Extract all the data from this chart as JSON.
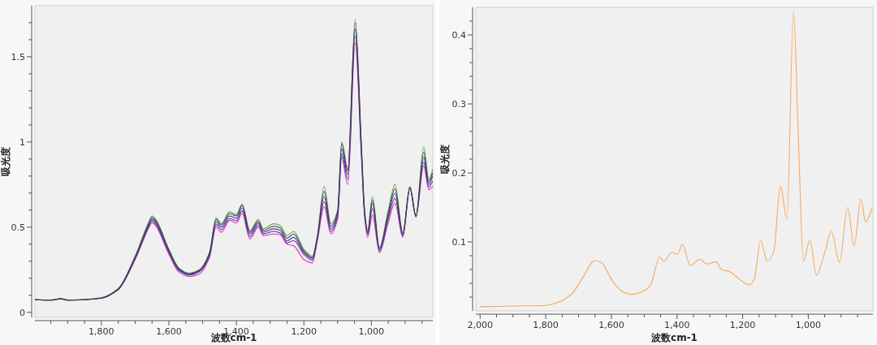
{
  "chart_data": [
    {
      "type": "line",
      "xlabel": "波数cm-1",
      "ylabel": "吸光度",
      "x": [
        1997,
        1950,
        1920,
        1900,
        1850,
        1800,
        1750,
        1700,
        1660,
        1650,
        1640,
        1600,
        1570,
        1540,
        1510,
        1480,
        1460,
        1445,
        1420,
        1400,
        1383,
        1360,
        1335,
        1320,
        1290,
        1270,
        1250,
        1230,
        1200,
        1175,
        1160,
        1140,
        1120,
        1100,
        1088,
        1070,
        1048,
        1030,
        1020,
        1011,
        997,
        976,
        951,
        930,
        907,
        886,
        868,
        845,
        830,
        818
      ],
      "series": [
        {
          "color": "#6aa84f",
          "values": [
            0.075,
            0.072,
            0.08,
            0.072,
            0.075,
            0.085,
            0.14,
            0.33,
            0.53,
            0.565,
            0.55,
            0.37,
            0.26,
            0.23,
            0.25,
            0.35,
            0.555,
            0.52,
            0.59,
            0.575,
            0.635,
            0.48,
            0.545,
            0.49,
            0.52,
            0.51,
            0.45,
            0.475,
            0.37,
            0.33,
            0.45,
            0.74,
            0.52,
            0.6,
            1.0,
            0.84,
            1.72,
            1.0,
            0.6,
            0.48,
            0.68,
            0.38,
            0.59,
            0.75,
            0.47,
            0.74,
            0.57,
            0.97,
            0.78,
            0.84
          ]
        },
        {
          "color": "#e030c8",
          "values": [
            null,
            null,
            null,
            null,
            null,
            0.082,
            0.132,
            0.31,
            0.495,
            0.525,
            0.51,
            0.34,
            0.235,
            0.21,
            0.225,
            0.32,
            0.5,
            0.47,
            0.54,
            0.525,
            0.58,
            0.43,
            0.5,
            0.45,
            0.46,
            0.455,
            0.4,
            0.39,
            0.31,
            0.29,
            0.42,
            0.62,
            0.46,
            0.55,
            0.91,
            0.75,
            1.58,
            0.93,
            0.56,
            0.44,
            0.57,
            0.35,
            0.52,
            0.64,
            0.44,
            0.73,
            0.56,
            0.86,
            0.72,
            0.74
          ]
        },
        {
          "color": "#703090",
          "values": [
            0.074,
            0.071,
            0.079,
            0.071,
            0.074,
            0.082,
            0.134,
            0.315,
            0.5,
            0.535,
            0.52,
            0.35,
            0.245,
            0.218,
            0.238,
            0.33,
            0.515,
            0.485,
            0.55,
            0.538,
            0.595,
            0.445,
            0.51,
            0.46,
            0.475,
            0.465,
            0.408,
            0.42,
            0.34,
            0.305,
            0.43,
            0.65,
            0.475,
            0.56,
            0.93,
            0.78,
            1.62,
            0.95,
            0.57,
            0.455,
            0.61,
            0.36,
            0.54,
            0.67,
            0.448,
            0.73,
            0.56,
            0.88,
            0.735,
            0.77
          ]
        },
        {
          "color": "#3040c0",
          "values": [
            0.074,
            0.071,
            0.079,
            0.071,
            0.074,
            0.083,
            0.136,
            0.32,
            0.51,
            0.545,
            0.53,
            0.358,
            0.25,
            0.222,
            0.242,
            0.338,
            0.53,
            0.5,
            0.565,
            0.552,
            0.612,
            0.46,
            0.522,
            0.47,
            0.49,
            0.48,
            0.42,
            0.44,
            0.35,
            0.315,
            0.438,
            0.68,
            0.49,
            0.575,
            0.96,
            0.81,
            1.66,
            0.97,
            0.58,
            0.465,
            0.64,
            0.368,
            0.56,
            0.7,
            0.455,
            0.73,
            0.565,
            0.91,
            0.75,
            0.8
          ]
        },
        {
          "color": "#404040",
          "values": [
            0.075,
            0.072,
            0.08,
            0.072,
            0.075,
            0.084,
            0.138,
            0.325,
            0.52,
            0.555,
            0.54,
            0.365,
            0.255,
            0.226,
            0.246,
            0.345,
            0.545,
            0.512,
            0.58,
            0.566,
            0.628,
            0.47,
            0.535,
            0.48,
            0.505,
            0.495,
            0.435,
            0.46,
            0.36,
            0.322,
            0.445,
            0.71,
            0.505,
            0.59,
            0.99,
            0.83,
            1.7,
            0.99,
            0.59,
            0.47,
            0.66,
            0.375,
            0.575,
            0.725,
            0.46,
            0.735,
            0.565,
            0.94,
            0.765,
            0.82
          ]
        }
      ],
      "xlim": [
        1997,
        818
      ],
      "ylim": [
        -0.03,
        1.8
      ],
      "xticks": [
        {
          "value": 1950,
          "label": null
        },
        {
          "value": 1900,
          "label": null
        },
        {
          "value": 1850,
          "label": null
        },
        {
          "value": 1800,
          "label": "1,800"
        },
        {
          "value": 1750,
          "label": null
        },
        {
          "value": 1700,
          "label": null
        },
        {
          "value": 1650,
          "label": null
        },
        {
          "value": 1600,
          "label": "1,600"
        },
        {
          "value": 1550,
          "label": null
        },
        {
          "value": 1500,
          "label": null
        },
        {
          "value": 1450,
          "label": null
        },
        {
          "value": 1400,
          "label": "1,400"
        },
        {
          "value": 1350,
          "label": null
        },
        {
          "value": 1300,
          "label": null
        },
        {
          "value": 1250,
          "label": null
        },
        {
          "value": 1200,
          "label": "1,200"
        },
        {
          "value": 1150,
          "label": null
        },
        {
          "value": 1100,
          "label": null
        },
        {
          "value": 1050,
          "label": null
        },
        {
          "value": 1000,
          "label": "1,000"
        },
        {
          "value": 950,
          "label": null
        },
        {
          "value": 900,
          "label": null
        },
        {
          "value": 850,
          "label": null
        }
      ],
      "yticks": [
        0,
        {
          "value": 0.1,
          "label": null
        },
        {
          "value": 0.2,
          "label": null
        },
        {
          "value": 0.3,
          "label": null
        },
        {
          "value": 0.4,
          "label": null
        },
        0.5,
        {
          "value": 0.6,
          "label": null
        },
        {
          "value": 0.7,
          "label": null
        },
        {
          "value": 0.8,
          "label": null
        },
        {
          "value": 0.9,
          "label": null
        },
        1,
        {
          "value": 1.1,
          "label": null
        },
        {
          "value": 1.2,
          "label": null
        },
        {
          "value": 1.3,
          "label": null
        },
        {
          "value": 1.4,
          "label": null
        },
        1.5,
        {
          "value": 1.6,
          "label": null
        },
        {
          "value": 1.7,
          "label": null
        }
      ]
    },
    {
      "type": "line",
      "xlabel": "波数cm-1",
      "ylabel": "吸光度",
      "x": [
        2000,
        1900,
        1800,
        1760,
        1720,
        1690,
        1650,
        1630,
        1600,
        1570,
        1540,
        1510,
        1480,
        1453,
        1440,
        1415,
        1400,
        1383,
        1360,
        1330,
        1310,
        1280,
        1265,
        1240,
        1210,
        1180,
        1165,
        1145,
        1125,
        1105,
        1085,
        1065,
        1045,
        1030,
        1015,
        995,
        975,
        950,
        930,
        905,
        880,
        860,
        840,
        825,
        805
      ],
      "series": [
        {
          "color": "#f5a860",
          "values": [
            0.006,
            0.007,
            0.008,
            0.013,
            0.025,
            0.046,
            0.073,
            0.07,
            0.046,
            0.029,
            0.024,
            0.027,
            0.038,
            0.078,
            0.072,
            0.085,
            0.082,
            0.096,
            0.066,
            0.075,
            0.068,
            0.071,
            0.06,
            0.057,
            0.046,
            0.038,
            0.046,
            0.102,
            0.072,
            0.086,
            0.181,
            0.133,
            0.435,
            0.248,
            0.072,
            0.102,
            0.052,
            0.084,
            0.115,
            0.07,
            0.15,
            0.094,
            0.162,
            0.129,
            0.149
          ]
        }
      ],
      "xlim": [
        2013,
        803
      ],
      "ylim": [
        0,
        0.44
      ],
      "xticks": [
        {
          "value": 2000,
          "label": "2,000"
        },
        {
          "value": 1950,
          "label": null
        },
        {
          "value": 1900,
          "label": null
        },
        {
          "value": 1850,
          "label": null
        },
        {
          "value": 1800,
          "label": "1,800"
        },
        {
          "value": 1750,
          "label": null
        },
        {
          "value": 1700,
          "label": null
        },
        {
          "value": 1650,
          "label": null
        },
        {
          "value": 1600,
          "label": "1,600"
        },
        {
          "value": 1550,
          "label": null
        },
        {
          "value": 1500,
          "label": null
        },
        {
          "value": 1450,
          "label": null
        },
        {
          "value": 1400,
          "label": "1,400"
        },
        {
          "value": 1350,
          "label": null
        },
        {
          "value": 1300,
          "label": null
        },
        {
          "value": 1250,
          "label": null
        },
        {
          "value": 1200,
          "label": "1,200"
        },
        {
          "value": 1150,
          "label": null
        },
        {
          "value": 1100,
          "label": null
        },
        {
          "value": 1050,
          "label": null
        },
        {
          "value": 1000,
          "label": "1,000"
        },
        {
          "value": 950,
          "label": null
        },
        {
          "value": 900,
          "label": null
        },
        {
          "value": 850,
          "label": null
        }
      ],
      "yticks": [
        {
          "value": 0.02,
          "label": null
        },
        {
          "value": 0.04,
          "label": null
        },
        {
          "value": 0.06,
          "label": null
        },
        {
          "value": 0.08,
          "label": null
        },
        0.1,
        {
          "value": 0.12,
          "label": null
        },
        {
          "value": 0.14,
          "label": null
        },
        {
          "value": 0.16,
          "label": null
        },
        {
          "value": 0.18,
          "label": null
        },
        0.2,
        {
          "value": 0.22,
          "label": null
        },
        {
          "value": 0.24,
          "label": null
        },
        {
          "value": 0.26,
          "label": null
        },
        {
          "value": 0.28,
          "label": null
        },
        0.3,
        {
          "value": 0.32,
          "label": null
        },
        {
          "value": 0.34,
          "label": null
        },
        {
          "value": 0.36,
          "label": null
        },
        {
          "value": 0.38,
          "label": null
        },
        0.4,
        {
          "value": 0.42,
          "label": null
        }
      ]
    }
  ]
}
